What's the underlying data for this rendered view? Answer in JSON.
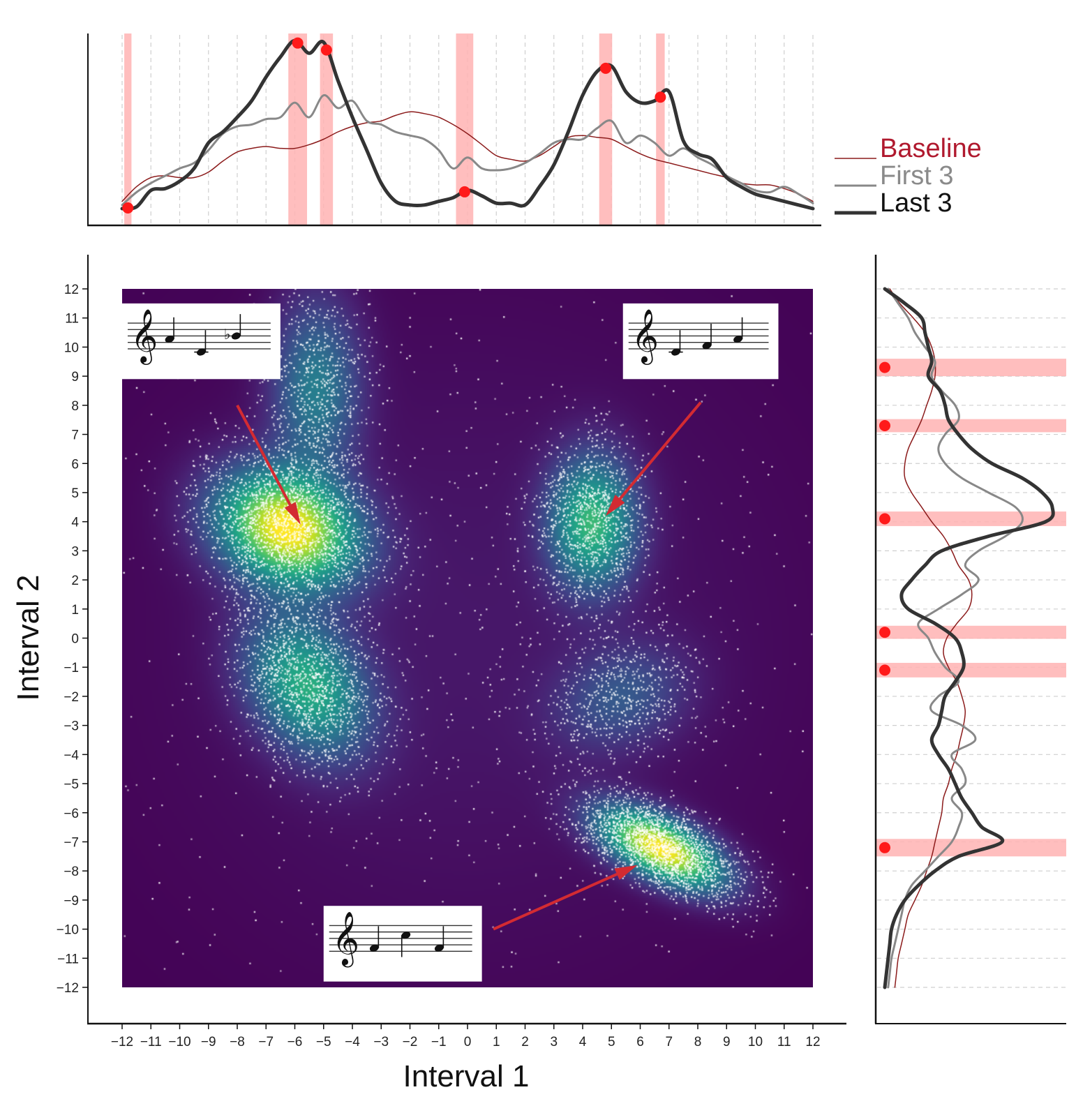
{
  "chart_data": {
    "type": "scatter",
    "main": {
      "xlabel": "Interval 1",
      "ylabel": "Interval 2",
      "xlim": [
        -12,
        12
      ],
      "ylim": [
        -12,
        12
      ],
      "x_ticks": [
        "−12",
        "−11",
        "−10",
        "−9",
        "−8",
        "−7",
        "−6",
        "−5",
        "−4",
        "−3",
        "−2",
        "−1",
        "0",
        "1",
        "2",
        "3",
        "4",
        "5",
        "6",
        "7",
        "8",
        "9",
        "10",
        "11",
        "12"
      ],
      "y_ticks": [
        "12",
        "11",
        "10",
        "9",
        "8",
        "7",
        "6",
        "5",
        "4",
        "3",
        "2",
        "1",
        "0",
        "−1",
        "−2",
        "−3",
        "−4",
        "−5",
        "−6",
        "−7",
        "−8",
        "−9",
        "−10",
        "−11",
        "−12"
      ],
      "background_color": "#440154",
      "point_color": "#ffffff",
      "density_clusters": [
        {
          "x": -6.3,
          "y": 3.8,
          "sx": 1.6,
          "sy": 1.3,
          "rho": -0.2,
          "weight": 1.0,
          "points": 2200
        },
        {
          "x": -5.3,
          "y": 8.6,
          "sx": 1.0,
          "sy": 2.0,
          "rho": 0.0,
          "weight": 0.35,
          "points": 800
        },
        {
          "x": -5.6,
          "y": -1.6,
          "sx": 1.4,
          "sy": 1.6,
          "rho": -0.3,
          "weight": 0.55,
          "points": 1500
        },
        {
          "x": 4.3,
          "y": 4.0,
          "sx": 1.0,
          "sy": 1.5,
          "rho": 0.0,
          "weight": 0.6,
          "points": 1100
        },
        {
          "x": 6.7,
          "y": -7.2,
          "sx": 1.4,
          "sy": 0.9,
          "rho": -0.6,
          "weight": 1.0,
          "points": 2000
        },
        {
          "x": 5.3,
          "y": -2.0,
          "sx": 1.5,
          "sy": 1.2,
          "rho": 0.2,
          "weight": 0.2,
          "points": 600
        },
        {
          "x": 0.0,
          "y": 0.0,
          "sx": 7.0,
          "sy": 7.0,
          "rho": 0.0,
          "weight": 0.04,
          "points": 900
        }
      ],
      "annotations": [
        {
          "name": "sheet-music-descending-ascending",
          "box_x": [
            -12,
            -6.5
          ],
          "box_y": [
            8.9,
            11.5
          ],
          "arrow_from": [
            -8.0,
            8.0
          ],
          "arrow_to": [
            -5.8,
            3.9
          ]
        },
        {
          "name": "sheet-music-ascending-thirds",
          "box_x": [
            5.4,
            10.8
          ],
          "box_y": [
            8.9,
            11.5
          ],
          "arrow_from": [
            8.1,
            8.1
          ],
          "arrow_to": [
            4.8,
            4.2
          ]
        },
        {
          "name": "sheet-music-up-down",
          "box_x": [
            -5.0,
            0.5
          ],
          "box_y": [
            -11.8,
            -9.2
          ],
          "arrow_from": [
            0.9,
            -10.0
          ],
          "arrow_to": [
            5.9,
            -7.8
          ]
        }
      ]
    },
    "top_marginal": {
      "x": [
        -12,
        -11.5,
        -11,
        -10.5,
        -10,
        -9.5,
        -9,
        -8.5,
        -8,
        -7.5,
        -7,
        -6.5,
        -6,
        -5.5,
        -5,
        -4.5,
        -4,
        -3.5,
        -3,
        -2.5,
        -2,
        -1.5,
        -1,
        -0.5,
        0,
        0.5,
        1,
        1.5,
        2,
        2.5,
        3,
        3.5,
        4,
        4.5,
        5,
        5.5,
        6,
        6.5,
        7,
        7.5,
        8,
        8.5,
        9,
        9.5,
        10,
        10.5,
        11,
        11.5,
        12
      ],
      "series": [
        {
          "name": "Baseline",
          "color": "#8b1a1a",
          "width": 1.5,
          "values": [
            0.12,
            0.2,
            0.25,
            0.26,
            0.25,
            0.25,
            0.28,
            0.34,
            0.39,
            0.41,
            0.42,
            0.41,
            0.41,
            0.43,
            0.46,
            0.5,
            0.53,
            0.55,
            0.56,
            0.59,
            0.61,
            0.6,
            0.58,
            0.54,
            0.49,
            0.43,
            0.37,
            0.35,
            0.34,
            0.37,
            0.42,
            0.47,
            0.48,
            0.47,
            0.46,
            0.42,
            0.38,
            0.35,
            0.33,
            0.31,
            0.29,
            0.27,
            0.25,
            0.22,
            0.21,
            0.21,
            0.19,
            0.16,
            0.12
          ]
        },
        {
          "name": "First 3",
          "color": "#888888",
          "width": 3,
          "values": [
            0.1,
            0.17,
            0.22,
            0.26,
            0.3,
            0.33,
            0.4,
            0.49,
            0.53,
            0.54,
            0.57,
            0.58,
            0.66,
            0.58,
            0.7,
            0.63,
            0.67,
            0.56,
            0.54,
            0.5,
            0.48,
            0.46,
            0.4,
            0.3,
            0.36,
            0.3,
            0.29,
            0.3,
            0.33,
            0.38,
            0.44,
            0.46,
            0.46,
            0.52,
            0.56,
            0.44,
            0.48,
            0.44,
            0.37,
            0.41,
            0.36,
            0.32,
            0.26,
            0.22,
            0.18,
            0.17,
            0.2,
            0.16,
            0.11
          ]
        },
        {
          "name": "Last 3",
          "color": "#333333",
          "width": 5,
          "values": [
            0.08,
            0.09,
            0.18,
            0.19,
            0.23,
            0.3,
            0.44,
            0.5,
            0.58,
            0.67,
            0.8,
            0.91,
            1.0,
            0.93,
            0.99,
            0.78,
            0.58,
            0.4,
            0.22,
            0.12,
            0.1,
            0.1,
            0.12,
            0.14,
            0.18,
            0.15,
            0.11,
            0.11,
            0.1,
            0.2,
            0.32,
            0.5,
            0.7,
            0.83,
            0.86,
            0.72,
            0.66,
            0.67,
            0.72,
            0.45,
            0.38,
            0.35,
            0.25,
            0.2,
            0.16,
            0.14,
            0.12,
            0.1,
            0.08
          ]
        }
      ],
      "peaks": [
        -11.8,
        -5.9,
        -4.9,
        -0.1,
        4.8,
        6.7
      ],
      "highlight_bands": [
        [
          -11.8,
          0.25
        ],
        [
          -5.9,
          0.65
        ],
        [
          -4.9,
          0.45
        ],
        [
          -0.1,
          0.6
        ],
        [
          4.8,
          0.45
        ],
        [
          6.7,
          0.3
        ]
      ]
    },
    "right_marginal": {
      "y": [
        12,
        11.5,
        11,
        10.5,
        10,
        9.5,
        9,
        8.5,
        8,
        7.5,
        7,
        6.5,
        6,
        5.5,
        5,
        4.5,
        4,
        3.5,
        3,
        2.5,
        2,
        1.5,
        1,
        0.5,
        0,
        -0.5,
        -1,
        -1.5,
        -2,
        -2.5,
        -3,
        -3.5,
        -4,
        -4.5,
        -5,
        -5.5,
        -6,
        -6.5,
        -7,
        -7.5,
        -8,
        -8.5,
        -9,
        -9.5,
        -10,
        -10.5,
        -11,
        -11.5,
        -12
      ],
      "series": [
        {
          "name": "Baseline",
          "color": "#8b1a1a",
          "width": 1.5,
          "values": [
            0.03,
            0.09,
            0.17,
            0.24,
            0.28,
            0.3,
            0.3,
            0.28,
            0.25,
            0.22,
            0.18,
            0.14,
            0.12,
            0.12,
            0.16,
            0.22,
            0.28,
            0.35,
            0.4,
            0.44,
            0.5,
            0.52,
            0.5,
            0.43,
            0.37,
            0.35,
            0.38,
            0.43,
            0.46,
            0.48,
            0.47,
            0.45,
            0.43,
            0.4,
            0.38,
            0.35,
            0.34,
            0.32,
            0.3,
            0.28,
            0.25,
            0.22,
            0.18,
            0.14,
            0.12,
            0.1,
            0.08,
            0.07,
            0.06
          ]
        },
        {
          "name": "First 3",
          "color": "#888888",
          "width": 3,
          "values": [
            0.02,
            0.08,
            0.14,
            0.18,
            0.24,
            0.3,
            0.28,
            0.34,
            0.42,
            0.44,
            0.36,
            0.32,
            0.36,
            0.46,
            0.62,
            0.78,
            0.82,
            0.72,
            0.56,
            0.48,
            0.56,
            0.46,
            0.32,
            0.2,
            0.26,
            0.3,
            0.36,
            0.44,
            0.32,
            0.28,
            0.46,
            0.54,
            0.4,
            0.46,
            0.48,
            0.4,
            0.46,
            0.44,
            0.4,
            0.32,
            0.24,
            0.16,
            0.12,
            0.1,
            0.08,
            0.06,
            0.04,
            0.03,
            0.02
          ]
        },
        {
          "name": "Last 3",
          "color": "#333333",
          "width": 5,
          "values": [
            0.0,
            0.12,
            0.22,
            0.24,
            0.26,
            0.28,
            0.26,
            0.33,
            0.36,
            0.38,
            0.44,
            0.52,
            0.64,
            0.82,
            0.94,
            1.0,
            0.96,
            0.62,
            0.34,
            0.24,
            0.16,
            0.1,
            0.14,
            0.3,
            0.42,
            0.46,
            0.47,
            0.42,
            0.36,
            0.34,
            0.32,
            0.28,
            0.32,
            0.38,
            0.42,
            0.46,
            0.52,
            0.58,
            0.7,
            0.44,
            0.3,
            0.2,
            0.12,
            0.07,
            0.04,
            0.03,
            0.02,
            0.01,
            0.0
          ]
        }
      ],
      "peaks": [
        9.3,
        7.3,
        4.1,
        0.2,
        -1.1,
        -7.2
      ],
      "highlight_bands": [
        [
          9.3,
          0.6
        ],
        [
          7.3,
          0.45
        ],
        [
          4.1,
          0.5
        ],
        [
          0.2,
          0.45
        ],
        [
          -1.1,
          0.5
        ],
        [
          -7.2,
          0.6
        ]
      ]
    },
    "legend": {
      "placement": "right-of-top-marginal",
      "entries": [
        {
          "label": "Baseline",
          "color": "#b0192e",
          "line_color": "#8b1a1a",
          "width": 1.5
        },
        {
          "label": "First 3",
          "color": "#8a8a8a",
          "line_color": "#888888",
          "width": 3
        },
        {
          "label": "Last 3",
          "color": "#111111",
          "line_color": "#333333",
          "width": 5
        }
      ]
    },
    "highlight_color": "#ffb3b3",
    "peak_color": "#ff1a1a",
    "arrow_color": "#d32b32",
    "grid": "dashed-vertical-and-horizontal-on-marginals"
  }
}
